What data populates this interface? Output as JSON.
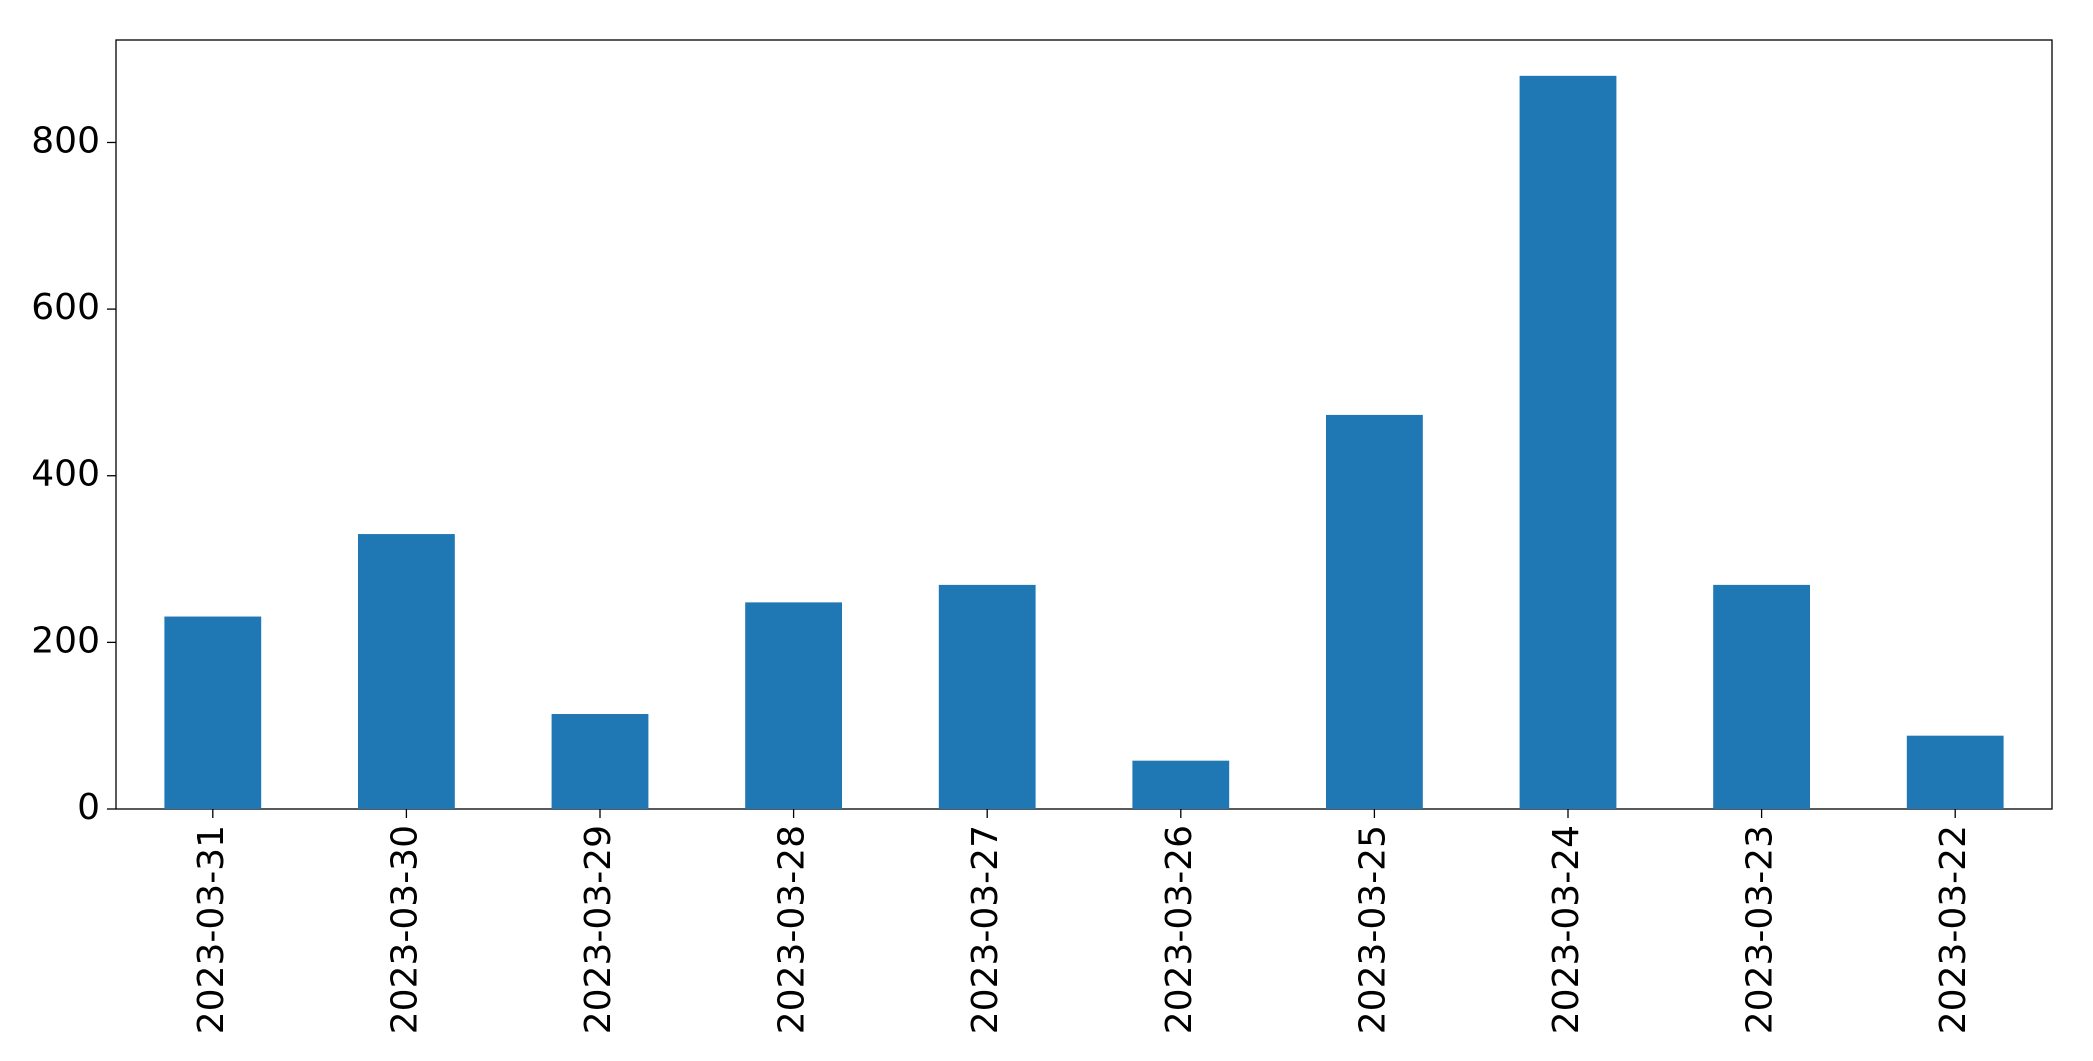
{
  "chart_data": {
    "type": "bar",
    "categories": [
      "2023-03-31",
      "2023-03-30",
      "2023-03-29",
      "2023-03-28",
      "2023-03-27",
      "2023-03-26",
      "2023-03-25",
      "2023-03-24",
      "2023-03-23",
      "2023-03-22"
    ],
    "values": [
      231,
      330,
      114,
      248,
      269,
      58,
      473,
      880,
      269,
      88
    ],
    "color": "#1f77b4",
    "ylim": [
      0,
      923
    ],
    "yticks": [
      0,
      200,
      400,
      600,
      800
    ],
    "grid": false
  }
}
